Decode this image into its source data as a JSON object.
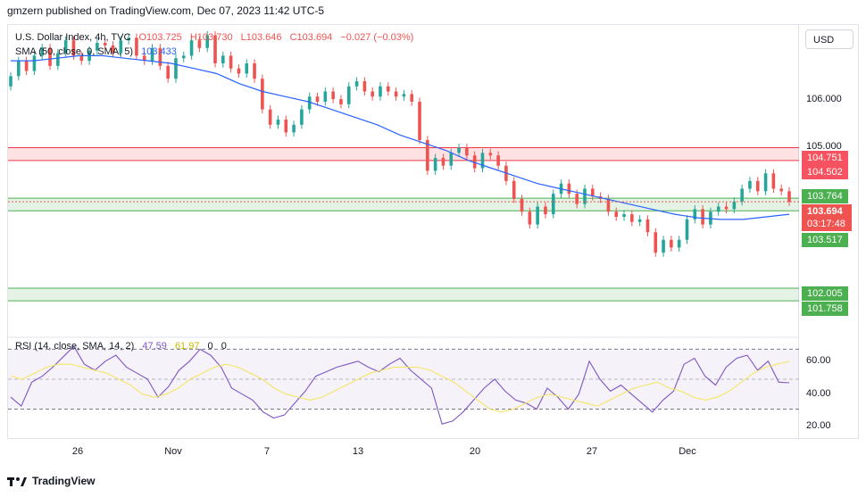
{
  "header": {
    "published": "gmzern published on TradingView.com, Dec 07, 2023 11:42 UTC-5"
  },
  "legend": {
    "symbol": "U.S. Dollar Index, 4h, TVC",
    "open": "O103.725",
    "high": "H103.730",
    "low": "L103.646",
    "close": "C103.694",
    "change": "−0.027 (−0.03%)",
    "sma_label": "SMA (50, close, 0, SMA, 5)",
    "sma_value": "103.433",
    "rsi_label": "RSI (14, close, SMA, 14, 2)",
    "rsi_value": "47.59",
    "rsi_ma_value": "61.97",
    "rsi_zero1": "0",
    "rsi_zero2": "0"
  },
  "price_axis": {
    "currency": "USD",
    "ticks": [
      "106.000",
      "105.000"
    ]
  },
  "rsi_axis": {
    "ticks": [
      "60.00",
      "40.00",
      "20.00"
    ]
  },
  "price_tags": {
    "zone_top_high": "104.751",
    "zone_top_low": "104.502",
    "level_upper": "103.764",
    "current": "103.694",
    "countdown": "03:17:48",
    "level_lower": "103.517",
    "zone_bottom_high": "102.005",
    "zone_bottom_low": "101.758"
  },
  "x_axis": {
    "ticks": [
      "26",
      "Nov",
      "7",
      "13",
      "20",
      "27",
      "Dec"
    ]
  },
  "footer": {
    "brand": "TradingView"
  },
  "colors": {
    "up": "#26a69a",
    "down": "#ef5350",
    "sma": "#2962ff",
    "rsi": "#7e57c2",
    "rsi_ma": "#f5e663",
    "zone_red": "#f23645",
    "zone_green": "#4caf50"
  },
  "chart_data": {
    "type": "candlestick",
    "title": "U.S. Dollar Index, 4h, TVC",
    "ylim": [
      101.15,
      107.15
    ],
    "x_ticks": [
      "26",
      "Nov",
      "7",
      "13",
      "20",
      "27",
      "Dec"
    ],
    "zones": [
      {
        "name": "resistance zone",
        "low": 104.502,
        "high": 104.751
      },
      {
        "name": "support zone",
        "low": 103.517,
        "high": 103.764
      },
      {
        "name": "lower support zone",
        "low": 101.758,
        "high": 102.005
      }
    ],
    "closes": [
      106.15,
      106.45,
      106.25,
      106.55,
      106.7,
      106.35,
      106.6,
      106.85,
      106.55,
      106.45,
      106.65,
      106.8,
      106.75,
      106.6,
      106.85,
      106.9,
      106.55,
      106.45,
      106.7,
      106.35,
      106.1,
      106.5,
      106.55,
      106.85,
      106.7,
      106.95,
      106.4,
      106.55,
      106.3,
      106.2,
      106.4,
      106.1,
      105.5,
      105.2,
      105.3,
      105.05,
      105.2,
      105.5,
      105.75,
      105.65,
      105.85,
      105.7,
      105.6,
      105.95,
      106.05,
      105.85,
      105.75,
      105.95,
      105.85,
      105.75,
      105.8,
      105.65,
      104.9,
      104.3,
      104.55,
      104.4,
      104.65,
      104.75,
      104.6,
      104.35,
      104.65,
      104.6,
      104.4,
      104.1,
      103.75,
      103.5,
      103.25,
      103.6,
      103.45,
      103.85,
      104.05,
      103.85,
      103.65,
      103.95,
      103.8,
      103.75,
      103.5,
      103.4,
      103.45,
      103.3,
      103.35,
      103.1,
      102.7,
      102.95,
      102.8,
      102.95,
      103.35,
      103.55,
      103.25,
      103.5,
      103.6,
      103.55,
      103.7,
      103.95,
      104.1,
      103.9,
      104.25,
      103.95,
      103.9,
      103.694
    ],
    "sma": [
      106.45,
      106.45,
      106.5,
      106.55,
      106.55,
      106.5,
      106.45,
      106.4,
      106.3,
      106.2,
      106.0,
      105.85,
      105.75,
      105.65,
      105.5,
      105.35,
      105.2,
      105.0,
      104.85,
      104.7,
      104.5,
      104.35,
      104.2,
      104.05,
      103.95,
      103.85,
      103.75,
      103.65,
      103.55,
      103.45,
      103.38,
      103.35,
      103.35,
      103.4,
      103.45
    ],
    "rsi": [
      38,
      32,
      48,
      52,
      58,
      65,
      72,
      60,
      56,
      62,
      66,
      58,
      54,
      50,
      38,
      45,
      56,
      62,
      70,
      66,
      58,
      44,
      40,
      36,
      28,
      24,
      26,
      34,
      42,
      52,
      55,
      58,
      60,
      62,
      58,
      55,
      60,
      64,
      56,
      50,
      44,
      20,
      22,
      28,
      36,
      44,
      50,
      42,
      36,
      34,
      30,
      44,
      38,
      30,
      40,
      62,
      50,
      42,
      46,
      40,
      34,
      28,
      36,
      42,
      60,
      64,
      52,
      46,
      58,
      64,
      66,
      56,
      62,
      48,
      47.59
    ],
    "rsi_ma": [
      52,
      50,
      54,
      58,
      60,
      60,
      58,
      56,
      54,
      50,
      46,
      40,
      38,
      40,
      44,
      50,
      54,
      58,
      60,
      58,
      54,
      50,
      44,
      40,
      38,
      36,
      38,
      42,
      46,
      50,
      54,
      56,
      58,
      58,
      58,
      56,
      52,
      48,
      42,
      36,
      30,
      28,
      30,
      34,
      38,
      40,
      38,
      36,
      34,
      32,
      36,
      40,
      44,
      46,
      48,
      44,
      42,
      38,
      36,
      38,
      42,
      48,
      54,
      58,
      60,
      61.97
    ]
  }
}
